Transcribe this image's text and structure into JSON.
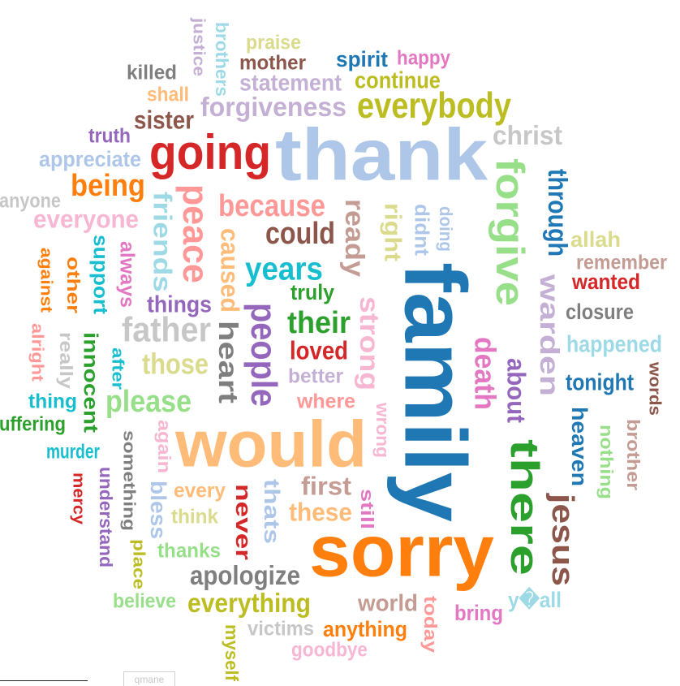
{
  "footer_label": "qmane",
  "words": [
    {
      "t": "thank",
      "c": "#aec7e8"
    },
    {
      "t": "family",
      "c": "#1f77b4"
    },
    {
      "t": "sorry",
      "c": "#ff7f0e"
    },
    {
      "t": "would",
      "c": "#ffbb78"
    },
    {
      "t": "forgive",
      "c": "#98df8a"
    },
    {
      "t": "going",
      "c": "#d62728"
    },
    {
      "t": "peace",
      "c": "#ff9896"
    },
    {
      "t": "there",
      "c": "#2ca02c"
    },
    {
      "t": "people",
      "c": "#9467bd"
    },
    {
      "t": "everybody",
      "c": "#bcbd22"
    },
    {
      "t": "jesus",
      "c": "#8c564b"
    },
    {
      "t": "warden",
      "c": "#c5b0d5"
    },
    {
      "t": "death",
      "c": "#e377c2"
    },
    {
      "t": "heart",
      "c": "#7f7f7f"
    },
    {
      "t": "strong",
      "c": "#f7b6d2"
    },
    {
      "t": "father",
      "c": "#c7c7c7"
    },
    {
      "t": "because",
      "c": "#ff9896"
    },
    {
      "t": "ready",
      "c": "#c49c94"
    },
    {
      "t": "forgiveness",
      "c": "#c5b0d5"
    },
    {
      "t": "could",
      "c": "#8c564b"
    },
    {
      "t": "years",
      "c": "#17becf"
    },
    {
      "t": "their",
      "c": "#2ca02c"
    },
    {
      "t": "through",
      "c": "#1f77b4"
    },
    {
      "t": "christ",
      "c": "#c7c7c7"
    },
    {
      "t": "about",
      "c": "#9467bd"
    },
    {
      "t": "please",
      "c": "#98df8a"
    },
    {
      "t": "being",
      "c": "#ff7f0e"
    },
    {
      "t": "friends",
      "c": "#9edae5"
    },
    {
      "t": "caused",
      "c": "#ffbb78"
    },
    {
      "t": "right",
      "c": "#dbdb8d"
    },
    {
      "t": "apologize",
      "c": "#7f7f7f"
    },
    {
      "t": "everything",
      "c": "#bcbd22"
    },
    {
      "t": "everyone",
      "c": "#f7b6d2"
    },
    {
      "t": "loved",
      "c": "#d62728"
    },
    {
      "t": "sister",
      "c": "#8c564b"
    },
    {
      "t": "those",
      "c": "#dbdb8d"
    },
    {
      "t": "statement",
      "c": "#c5b0d5"
    },
    {
      "t": "continue",
      "c": "#bcbd22"
    },
    {
      "t": "heaven",
      "c": "#1f77b4"
    },
    {
      "t": "tonight",
      "c": "#1f77b4"
    },
    {
      "t": "happened",
      "c": "#9edae5"
    },
    {
      "t": "closure",
      "c": "#7f7f7f"
    },
    {
      "t": "wanted",
      "c": "#d62728"
    },
    {
      "t": "remember",
      "c": "#c49c94"
    },
    {
      "t": "allah",
      "c": "#dbdb8d"
    },
    {
      "t": "innocent",
      "c": "#2ca02c"
    },
    {
      "t": "support",
      "c": "#17becf"
    },
    {
      "t": "always",
      "c": "#e377c2"
    },
    {
      "t": "things",
      "c": "#9467bd"
    },
    {
      "t": "truly",
      "c": "#2ca02c"
    },
    {
      "t": "better",
      "c": "#c5b0d5"
    },
    {
      "t": "where",
      "c": "#ff9896"
    },
    {
      "t": "wrong",
      "c": "#f7b6d2"
    },
    {
      "t": "didnt",
      "c": "#aec7e8"
    },
    {
      "t": "doing",
      "c": "#aec7e8"
    },
    {
      "t": "first",
      "c": "#c49c94"
    },
    {
      "t": "these",
      "c": "#ffbb78"
    },
    {
      "t": "still",
      "c": "#e377c2"
    },
    {
      "t": "thats",
      "c": "#aec7e8"
    },
    {
      "t": "never",
      "c": "#d62728"
    },
    {
      "t": "every",
      "c": "#ffbb78"
    },
    {
      "t": "think",
      "c": "#dbdb8d"
    },
    {
      "t": "bless",
      "c": "#aec7e8"
    },
    {
      "t": "again",
      "c": "#f7b6d2"
    },
    {
      "t": "thanks",
      "c": "#98df8a"
    },
    {
      "t": "place",
      "c": "#bcbd22"
    },
    {
      "t": "something",
      "c": "#7f7f7f"
    },
    {
      "t": "understand",
      "c": "#9467bd"
    },
    {
      "t": "mercy",
      "c": "#d62728"
    },
    {
      "t": "murder",
      "c": "#17becf"
    },
    {
      "t": "uffering",
      "c": "#2ca02c"
    },
    {
      "t": "thing",
      "c": "#17becf"
    },
    {
      "t": "alright",
      "c": "#ff9896"
    },
    {
      "t": "really",
      "c": "#c7c7c7"
    },
    {
      "t": "after",
      "c": "#17becf"
    },
    {
      "t": "against",
      "c": "#ff7f0e"
    },
    {
      "t": "other",
      "c": "#ff7f0e"
    },
    {
      "t": "anyone",
      "c": "#c7c7c7"
    },
    {
      "t": "appreciate",
      "c": "#aec7e8"
    },
    {
      "t": "truth",
      "c": "#9467bd"
    },
    {
      "t": "killed",
      "c": "#7f7f7f"
    },
    {
      "t": "shall",
      "c": "#ffbb78"
    },
    {
      "t": "justice",
      "c": "#c5b0d5"
    },
    {
      "t": "brothers",
      "c": "#9edae5"
    },
    {
      "t": "praise",
      "c": "#dbdb8d"
    },
    {
      "t": "mother",
      "c": "#8c564b"
    },
    {
      "t": "spirit",
      "c": "#1f77b4"
    },
    {
      "t": "happy",
      "c": "#e377c2"
    },
    {
      "t": "believe",
      "c": "#98df8a"
    },
    {
      "t": "victims",
      "c": "#c7c7c7"
    },
    {
      "t": "goodbye",
      "c": "#f7b6d2"
    },
    {
      "t": "myself",
      "c": "#bcbd22"
    },
    {
      "t": "anything",
      "c": "#ff7f0e"
    },
    {
      "t": "world",
      "c": "#c49c94"
    },
    {
      "t": "today",
      "c": "#ff9896"
    },
    {
      "t": "bring",
      "c": "#e377c2"
    },
    {
      "t": "y�all",
      "c": "#9edae5"
    },
    {
      "t": "nothing",
      "c": "#98df8a"
    },
    {
      "t": "brother",
      "c": "#c49c94"
    },
    {
      "t": "words",
      "c": "#8c564b"
    }
  ]
}
